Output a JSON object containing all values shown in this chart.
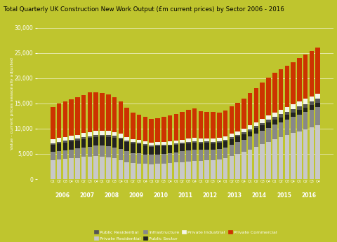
{
  "title": "Total Quarterly UK Construction New Work Output (£m current prices) by Sector 2006 - 2016",
  "ylabel": "Value - current prices seasonally adjusted",
  "background_color": "#bfc52e",
  "ylim": [
    0,
    30000
  ],
  "yticks": [
    0,
    5000,
    10000,
    15000,
    20000,
    25000,
    30000
  ],
  "sectors": [
    "Private Residential",
    "Infrastructure",
    "Public Sector",
    "Public Residential",
    "Private Industrial",
    "Private Commercial"
  ],
  "colors": [
    "#c8c8c8",
    "#888888",
    "#222222",
    "#555555",
    "#f5f5e8",
    "#cc3300"
  ],
  "quarters": [
    "Q1",
    "Q2",
    "Q3",
    "Q4",
    "Q1",
    "Q2",
    "Q3",
    "Q4",
    "Q1",
    "Q2",
    "Q3",
    "Q4",
    "Q1",
    "Q2",
    "Q3",
    "Q4",
    "Q1",
    "Q2",
    "Q3",
    "Q4",
    "Q1",
    "Q2",
    "Q3",
    "Q4",
    "Q1",
    "Q2",
    "Q3",
    "Q4",
    "Q1",
    "Q2",
    "Q3",
    "Q4",
    "Q1",
    "Q2",
    "Q3",
    "Q4",
    "Q1",
    "Q2",
    "Q3",
    "Q4",
    "Q1",
    "Q2",
    "Q3",
    "Q4"
  ],
  "year_positions": [
    1.5,
    5.5,
    9.5,
    13.5,
    17.5,
    21.5,
    25.5,
    29.5,
    33.5,
    37.5,
    41.5
  ],
  "year_labels": [
    "2006",
    "2007",
    "2008",
    "2009",
    "2010",
    "2011",
    "2012",
    "2013",
    "2014",
    "2015",
    "2016"
  ],
  "legend_order": [
    "Public Residential",
    "Private Residential",
    "Infrastructure",
    "Public Sector",
    "Private Industrial",
    "Private Commercial"
  ],
  "legend_colors": [
    "#555555",
    "#c8c8c8",
    "#888888",
    "#222222",
    "#f5f5e8",
    "#cc3300"
  ],
  "data": {
    "Private Residential": [
      3800,
      3900,
      4000,
      4100,
      4200,
      4400,
      4500,
      4600,
      4500,
      4300,
      4100,
      3800,
      3400,
      3200,
      3100,
      3000,
      2900,
      3000,
      3100,
      3200,
      3300,
      3400,
      3500,
      3600,
      3600,
      3700,
      3800,
      3900,
      4200,
      4600,
      5000,
      5400,
      5900,
      6400,
      6900,
      7400,
      7900,
      8300,
      8700,
      9100,
      9500,
      9900,
      10300,
      10700
    ],
    "Infrastructure": [
      1600,
      1700,
      1750,
      1800,
      1850,
      1900,
      1950,
      2000,
      2100,
      2200,
      2200,
      2200,
      2100,
      2000,
      2000,
      1900,
      1900,
      1900,
      1900,
      1900,
      2000,
      2100,
      2200,
      2300,
      2200,
      2200,
      2100,
      2100,
      2100,
      2200,
      2300,
      2400,
      2500,
      2600,
      2700,
      2800,
      2900,
      3000,
      3100,
      3200,
      3300,
      3400,
      3500,
      3600
    ],
    "Public Sector": [
      1400,
      1450,
      1500,
      1550,
      1600,
      1650,
      1700,
      1750,
      1800,
      1850,
      1900,
      1900,
      1900,
      1850,
      1800,
      1750,
      1650,
      1600,
      1550,
      1500,
      1450,
      1400,
      1350,
      1300,
      1280,
      1260,
      1240,
      1220,
      1200,
      1180,
      1160,
      1140,
      1100,
      1080,
      1060,
      1040,
      1000,
      980,
      960,
      940,
      920,
      900,
      890,
      880
    ],
    "Public Residential": [
      300,
      310,
      320,
      330,
      350,
      360,
      370,
      380,
      390,
      380,
      360,
      330,
      290,
      270,
      260,
      250,
      240,
      250,
      260,
      270,
      280,
      290,
      300,
      310,
      300,
      290,
      285,
      290,
      300,
      320,
      340,
      360,
      400,
      450,
      490,
      530,
      570,
      600,
      620,
      640,
      660,
      680,
      700,
      720
    ],
    "Private Industrial": [
      750,
      770,
      780,
      790,
      800,
      810,
      820,
      830,
      820,
      810,
      790,
      760,
      700,
      650,
      630,
      610,
      590,
      600,
      610,
      620,
      630,
      640,
      650,
      660,
      650,
      640,
      630,
      640,
      650,
      670,
      690,
      710,
      740,
      770,
      800,
      830,
      860,
      890,
      920,
      950,
      980,
      1010,
      1030,
      1050
    ],
    "Private Commercial": [
      6500,
      6800,
      7000,
      7200,
      7400,
      7600,
      7800,
      7700,
      7500,
      7300,
      6900,
      6400,
      5800,
      5200,
      5000,
      4800,
      4600,
      4700,
      4900,
      5100,
      5300,
      5500,
      5700,
      5800,
      5500,
      5300,
      5200,
      5100,
      5200,
      5400,
      5700,
      6000,
      6400,
      6800,
      7200,
      7500,
      7800,
      8000,
      8200,
      8400,
      8600,
      8800,
      9000,
      9100
    ]
  }
}
